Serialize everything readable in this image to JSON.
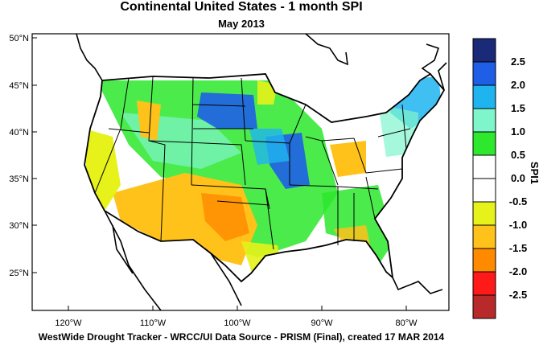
{
  "header": {
    "title": "Continental United States - 1 month SPI",
    "subtitle": "May 2013"
  },
  "footer": {
    "credit": "WestWide Drought Tracker - WRCC/UI  Data Source - PRISM (Final), created 17 MAR 2014"
  },
  "axes": {
    "lat_labels": [
      "50°N",
      "45°N",
      "40°N",
      "35°N",
      "30°N",
      "25°N"
    ],
    "lon_labels": [
      "120°W",
      "110°W",
      "100°W",
      "90°W",
      "80°W"
    ]
  },
  "colorbar": {
    "title": "SPI1",
    "labels": [
      "2.5",
      "2.0",
      "1.5",
      "1.0",
      "0.5",
      "0.0",
      "-0.5",
      "-1.0",
      "-1.5",
      "-2.0",
      "-2.5"
    ],
    "colors": [
      "#1a2a78",
      "#1f5fe8",
      "#1fb4f0",
      "#7ff5cc",
      "#2de82d",
      "#ffffff",
      "#ffffff",
      "#e6f21a",
      "#ffc21a",
      "#ff8a00",
      "#ff1a1a",
      "#b82a2a"
    ]
  },
  "regions": [
    {
      "name": "wet-northern-plains",
      "color": "#1f5fe8"
    },
    {
      "name": "wet-upper-midwest",
      "color": "#1f5fe8"
    },
    {
      "name": "moist-central",
      "color": "#2de82d"
    },
    {
      "name": "dry-southwest",
      "color": "#ffc21a"
    },
    {
      "name": "dry-california",
      "color": "#e6f21a"
    },
    {
      "name": "dry-ohio-valley",
      "color": "#ffc21a"
    },
    {
      "name": "moist-southeast",
      "color": "#2de82d"
    },
    {
      "name": "wet-northeast",
      "color": "#1fb4f0"
    }
  ]
}
